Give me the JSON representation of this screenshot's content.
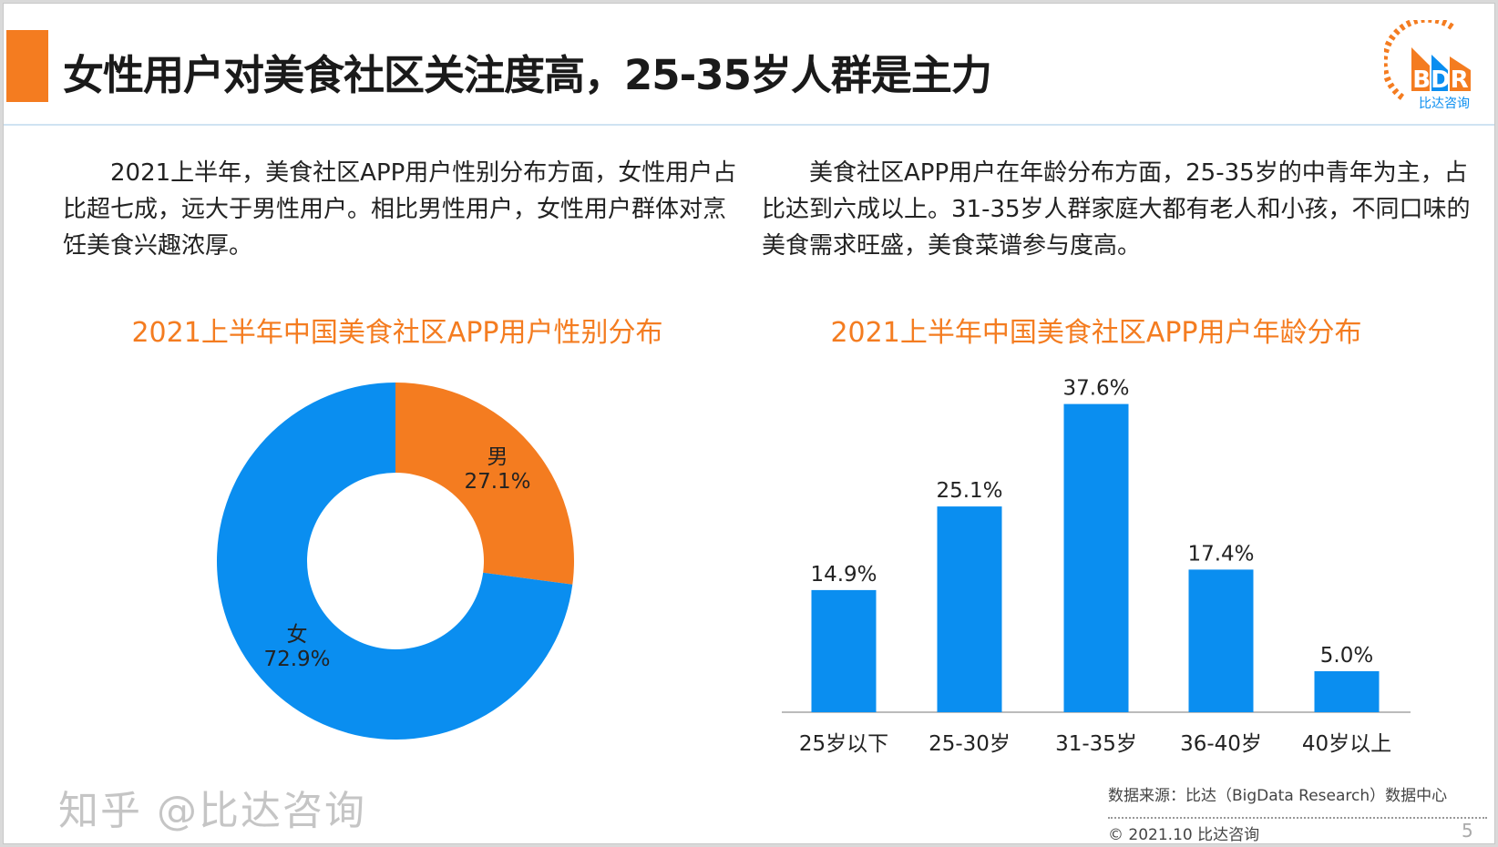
{
  "title": "女性用户对美食社区关注度高，25-35岁人群是主力",
  "logo": {
    "text": "BDR",
    "subtitle": "比达咨询"
  },
  "left_paragraph": "2021上半年，美食社区APP用户性别分布方面，女性用户占比超七成，远大于男性用户。相比男性用户，女性用户群体对烹饪美食兴趣浓厚。",
  "right_paragraph": "美食社区APP用户在年龄分布方面，25-35岁的中青年为主，占比达到六成以上。31-35岁人群家庭大都有老人和小孩，不同口味的美食需求旺盛，美食菜谱参与度高。",
  "colors": {
    "accent": "#f47c20",
    "blue": "#0a8ef0"
  },
  "chart_data": [
    {
      "type": "pie",
      "donut": true,
      "title": "2021上半年中国美食社区APP用户性别分布",
      "slices": [
        {
          "label": "男",
          "value": 27.1,
          "display": "27.1%",
          "color": "#f47c20"
        },
        {
          "label": "女",
          "value": 72.9,
          "display": "72.9%",
          "color": "#0a8ef0"
        }
      ]
    },
    {
      "type": "bar",
      "title": "2021上半年中国美食社区APP用户年龄分布",
      "categories": [
        "25岁以下",
        "25-30岁",
        "31-35岁",
        "36-40岁",
        "40岁以上"
      ],
      "values": [
        14.9,
        25.1,
        37.6,
        17.4,
        5.0
      ],
      "labels": [
        "14.9%",
        "25.1%",
        "37.6%",
        "17.4%",
        "5.0%"
      ],
      "color": "#0a8ef0",
      "grid": false
    }
  ],
  "footer": {
    "source": "数据来源：比达（BigData Research）数据中心",
    "copyright": "© 2021.10 比达咨询",
    "page": "5",
    "watermark": "知乎 @比达咨询"
  }
}
